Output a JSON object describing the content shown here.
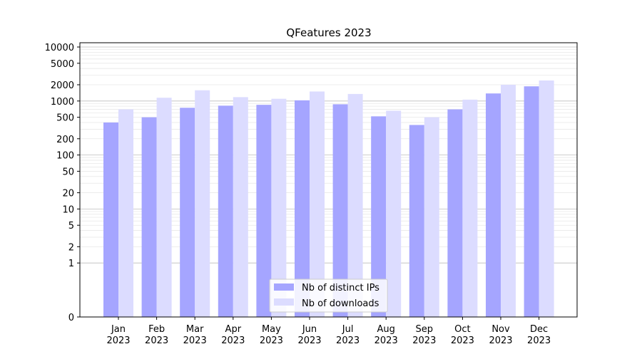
{
  "chart_data": {
    "type": "bar",
    "title": "QFeatures 2023",
    "xlabel": "",
    "ylabel": "",
    "yscale": "symlog",
    "ylim": [
      0,
      12000
    ],
    "yticks": [
      0,
      1,
      2,
      5,
      10,
      20,
      50,
      100,
      200,
      500,
      1000,
      2000,
      5000,
      10000
    ],
    "grid": true,
    "legend_position": "bottom-center",
    "categories": [
      [
        "Jan",
        "2023"
      ],
      [
        "Feb",
        "2023"
      ],
      [
        "Mar",
        "2023"
      ],
      [
        "Apr",
        "2023"
      ],
      [
        "May",
        "2023"
      ],
      [
        "Jun",
        "2023"
      ],
      [
        "Jul",
        "2023"
      ],
      [
        "Aug",
        "2023"
      ],
      [
        "Sep",
        "2023"
      ],
      [
        "Oct",
        "2023"
      ],
      [
        "Nov",
        "2023"
      ],
      [
        "Dec",
        "2023"
      ]
    ],
    "series": [
      {
        "name": "Nb of distinct IPs",
        "color": "#a5a5ff",
        "values": [
          400,
          500,
          750,
          820,
          850,
          1030,
          870,
          520,
          360,
          700,
          1380,
          1870
        ]
      },
      {
        "name": "Nb of downloads",
        "color": "#dcdcff",
        "values": [
          700,
          1150,
          1580,
          1180,
          1100,
          1500,
          1350,
          660,
          500,
          1060,
          2000,
          2400
        ]
      }
    ]
  }
}
